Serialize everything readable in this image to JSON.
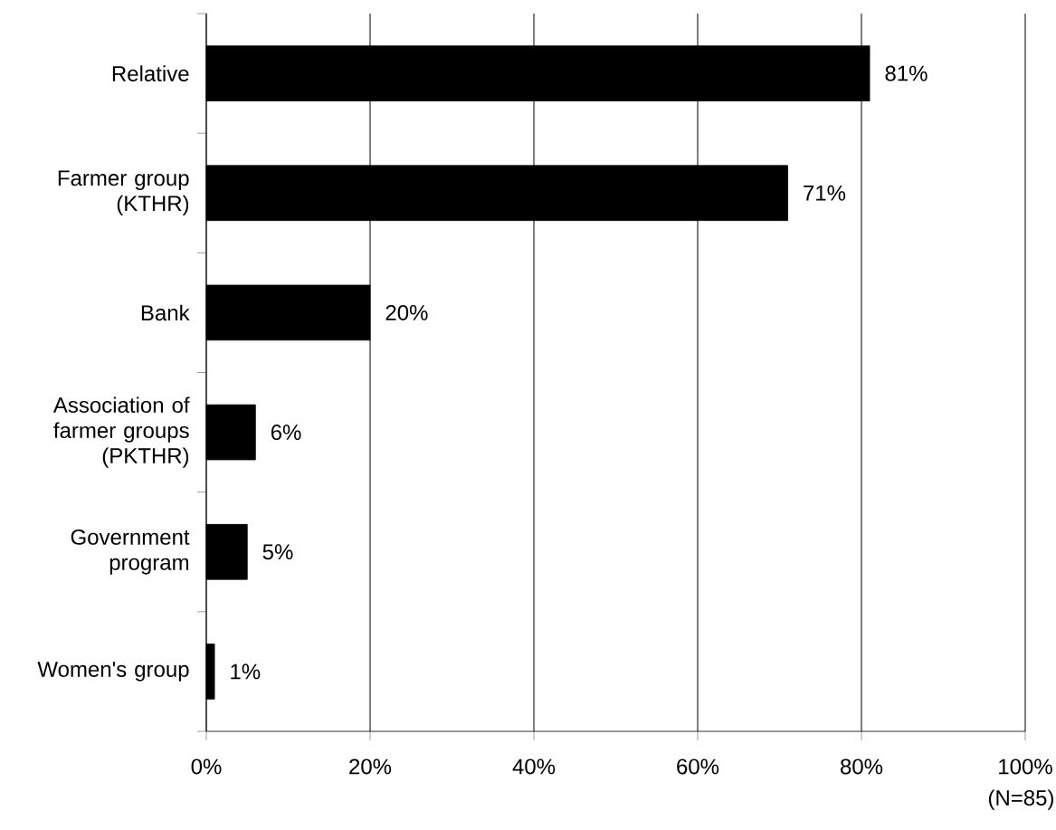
{
  "chart_data": {
    "type": "bar",
    "orientation": "horizontal",
    "categories": [
      "Relative",
      "Farmer group (KTHR)",
      "Bank",
      "Association of farmer groups (PKTHR)",
      "Government program",
      "Women's group"
    ],
    "values": [
      81,
      71,
      20,
      6,
      5,
      1
    ],
    "value_labels": [
      "81%",
      "71%",
      "20%",
      "6%",
      "5%",
      "1%"
    ],
    "color": "#000000",
    "xlim": [
      0,
      100
    ],
    "xticks": [
      {
        "value": 0,
        "label": "0%"
      },
      {
        "value": 20,
        "label": "20%"
      },
      {
        "value": 40,
        "label": "40%"
      },
      {
        "value": 60,
        "label": "60%"
      },
      {
        "value": 80,
        "label": "80%"
      },
      {
        "value": 100,
        "label": "100%"
      }
    ],
    "grid": "x",
    "annotations": [
      "(N=85)"
    ]
  }
}
